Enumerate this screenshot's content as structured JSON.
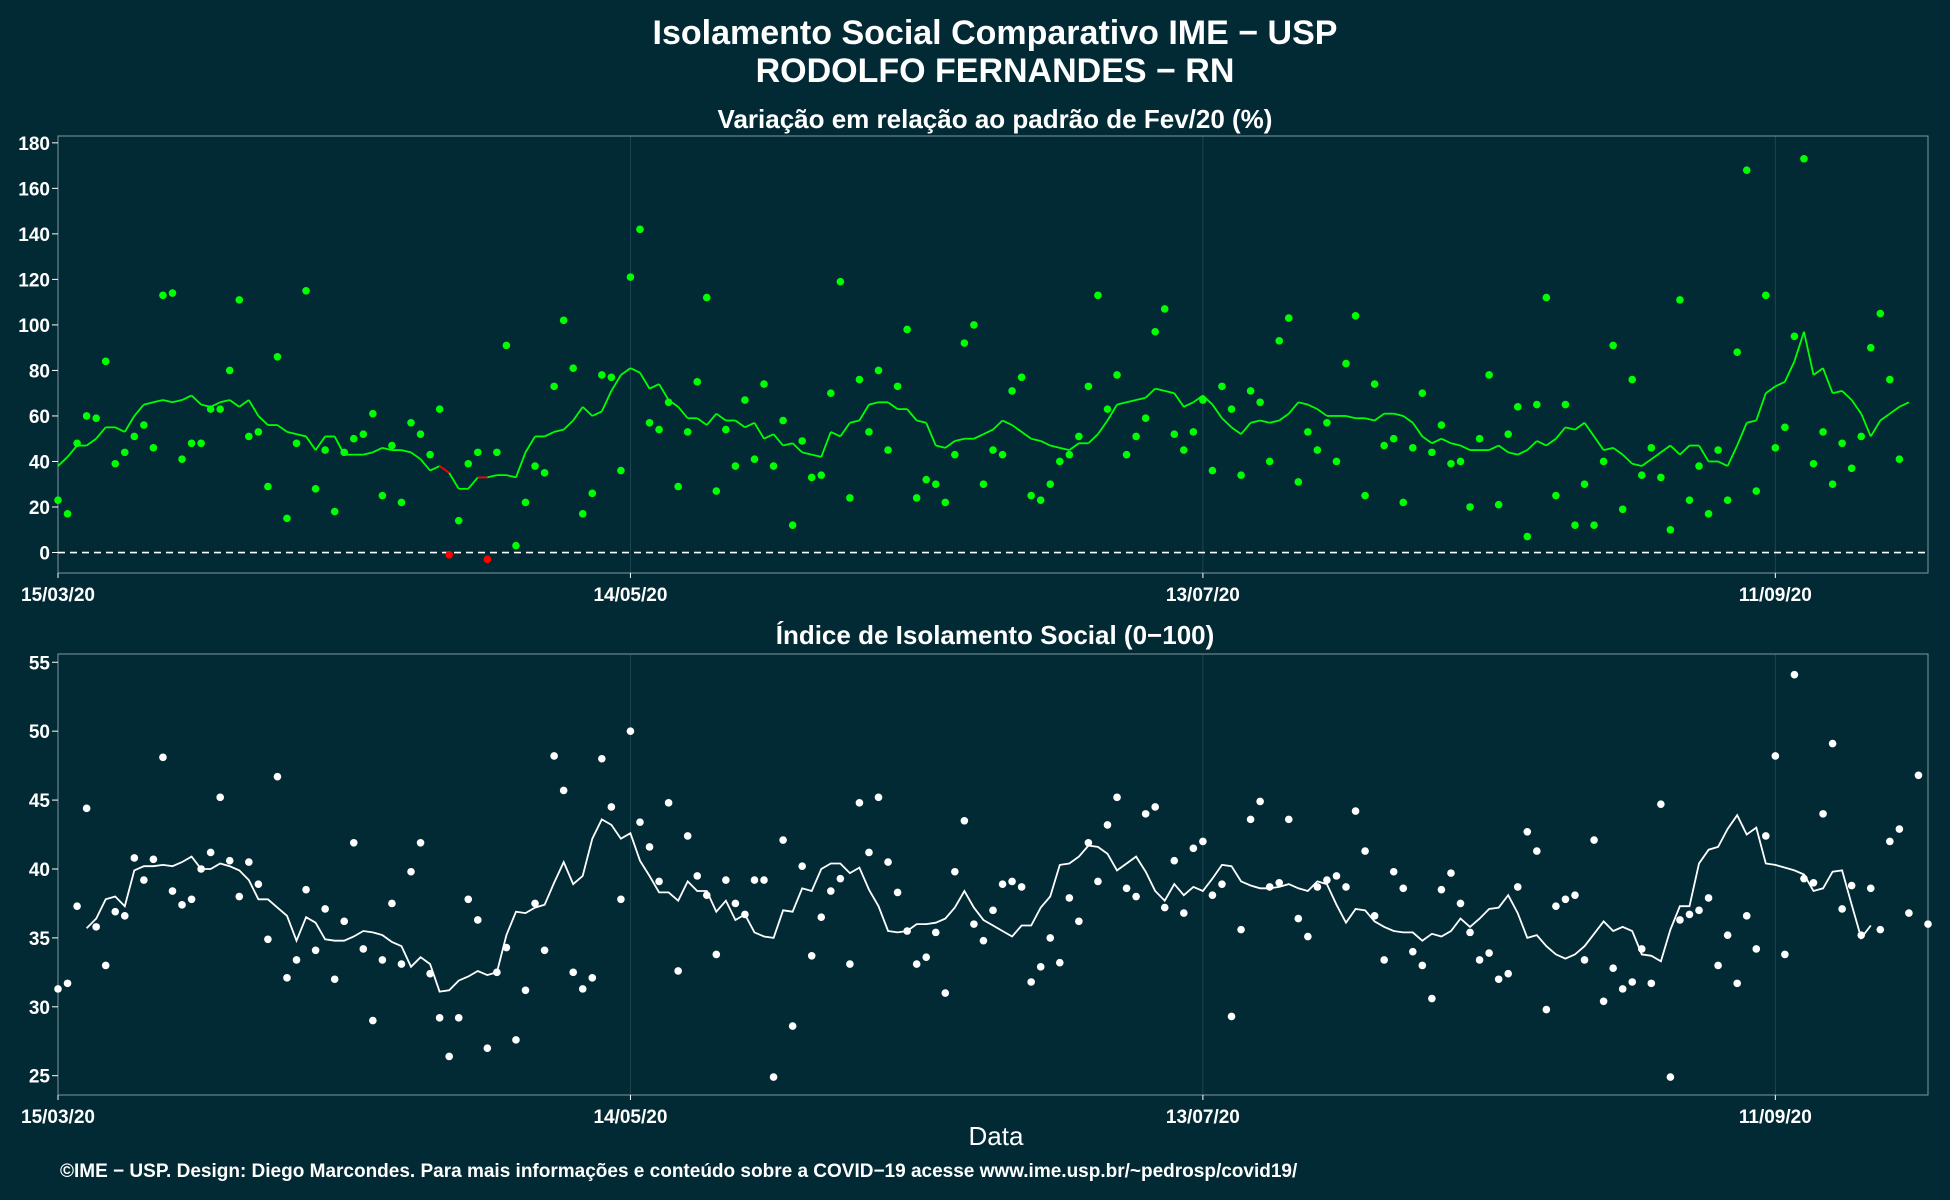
{
  "title_line1": "Isolamento Social Comparativo IME − USP",
  "title_line2": "RODOLFO FERNANDES − RN",
  "xlabel": "Data",
  "caption": "©IME − USP. Design: Diego Marcondes. Para mais informações e conteúdo sobre a COVID−19 acesse www.ime.usp.br/~pedrosp/covid19/",
  "colors": {
    "background": "#022a35",
    "positive": "#00ff00",
    "negative": "#ff0000",
    "index_series": "#ffffff",
    "zero_line": "#ffffff"
  },
  "chart_data": [
    {
      "type": "scatter",
      "title": "Variação em relação ao padrão de Fev/20 (%)",
      "x_ticks": [
        "15/03/20",
        "14/05/20",
        "13/07/20",
        "11/09/20"
      ],
      "x_range_days": [
        0,
        196
      ],
      "y_ticks": [
        0,
        20,
        40,
        60,
        80,
        100,
        120,
        140,
        160,
        180
      ],
      "ylim": [
        -9,
        183
      ],
      "reference_line": 0,
      "grid": true,
      "series": [
        {
          "kind": "daily_points",
          "values": [
            23,
            17,
            48,
            60,
            59,
            84,
            39,
            44,
            51,
            56,
            46,
            113,
            114,
            41,
            48,
            48,
            63,
            63,
            80,
            111,
            51,
            53,
            29,
            86,
            15,
            48,
            115,
            28,
            45,
            18,
            44,
            50,
            52,
            61,
            25,
            47,
            22,
            57,
            52,
            43,
            63,
            -1,
            14,
            39,
            44,
            -3,
            44,
            91,
            3,
            22,
            38,
            35,
            73,
            102,
            81,
            17,
            26,
            78,
            77,
            36,
            121,
            142,
            57,
            54,
            66,
            29,
            53,
            75,
            112,
            27,
            54,
            38,
            67,
            41,
            74,
            38,
            58,
            12,
            49,
            33,
            34,
            70,
            119,
            24,
            76,
            53,
            80,
            45,
            73,
            98,
            24,
            32,
            30,
            22,
            43,
            92,
            100,
            30,
            45,
            43,
            71,
            77,
            25,
            23,
            30,
            40,
            43,
            51,
            73,
            113,
            63,
            78,
            43,
            51,
            59,
            97,
            107,
            52,
            45,
            53,
            67,
            36,
            73,
            63,
            34,
            71,
            66,
            40,
            93,
            103,
            31,
            53,
            45,
            57,
            40,
            83,
            104,
            25,
            74,
            47,
            50,
            22,
            46,
            70,
            44,
            56,
            39,
            40,
            20,
            50,
            78,
            21,
            52,
            64,
            7,
            65,
            112,
            25,
            65,
            12,
            30,
            12,
            40,
            91,
            19,
            76,
            34,
            46,
            33,
            10,
            111,
            23,
            38,
            17,
            45,
            23,
            88,
            168,
            27,
            113,
            46,
            55,
            95,
            173,
            39,
            53,
            30,
            48,
            37,
            51,
            90,
            105,
            76,
            41
          ]
        },
        {
          "kind": "moving_average",
          "values": [
            38,
            42,
            47,
            47,
            50,
            55,
            55,
            53,
            60,
            65,
            66,
            67,
            66,
            67,
            69,
            65,
            64,
            66,
            67,
            64,
            67,
            60,
            56,
            56,
            53,
            52,
            51,
            45,
            51,
            51,
            43,
            43,
            43,
            44,
            46,
            45,
            45,
            44,
            41,
            36,
            38,
            35,
            28,
            28,
            33,
            33,
            34,
            34,
            33,
            44,
            51,
            51,
            53,
            54,
            58,
            64,
            60,
            62,
            71,
            78,
            81,
            79,
            72,
            74,
            67,
            64,
            59,
            59,
            56,
            61,
            58,
            58,
            55,
            57,
            50,
            52,
            47,
            48,
            44,
            43,
            42,
            53,
            51,
            57,
            58,
            65,
            66,
            66,
            63,
            63,
            58,
            57,
            47,
            46,
            49,
            50,
            50,
            52,
            54,
            58,
            56,
            53,
            50,
            49,
            47,
            46,
            45,
            48,
            48,
            52,
            58,
            65,
            66,
            67,
            68,
            72,
            71,
            70,
            64,
            66,
            69,
            65,
            59,
            55,
            52,
            57,
            58,
            57,
            58,
            61,
            66,
            65,
            63,
            60,
            60,
            60,
            59,
            59,
            58,
            61,
            61,
            60,
            57,
            51,
            48,
            50,
            48,
            47,
            45,
            45,
            45,
            47,
            44,
            43,
            45,
            49,
            47,
            50,
            55,
            54,
            57,
            51,
            45,
            46,
            43,
            39,
            38,
            41,
            44,
            47,
            43,
            47,
            47,
            40,
            40,
            38,
            47,
            57,
            58,
            70,
            73,
            75,
            84,
            97,
            78,
            81,
            70,
            71,
            67,
            61,
            51,
            58,
            61,
            64,
            66
          ]
        }
      ]
    },
    {
      "type": "scatter",
      "title": "Índice de Isolamento Social (0−100)",
      "x_ticks": [
        "15/03/20",
        "14/05/20",
        "13/07/20",
        "11/09/20"
      ],
      "x_range_days": [
        0,
        196
      ],
      "y_ticks": [
        25,
        30,
        35,
        40,
        45,
        50,
        55
      ],
      "ylim": [
        23.6,
        55.6
      ],
      "grid": true,
      "series": [
        {
          "kind": "daily_points",
          "values": [
            31.3,
            31.7,
            37.3,
            44.4,
            35.8,
            33,
            36.9,
            36.6,
            40.8,
            39.2,
            40.7,
            48.1,
            38.4,
            37.4,
            37.8,
            40,
            41.2,
            45.2,
            40.6,
            38,
            40.5,
            38.9,
            34.9,
            46.7,
            32.1,
            33.4,
            38.5,
            34.1,
            37.1,
            32,
            36.2,
            41.9,
            34.2,
            29,
            33.4,
            37.5,
            33.1,
            39.8,
            41.9,
            32.4,
            29.2,
            26.4,
            29.2,
            37.8,
            36.3,
            27,
            32.5,
            34.3,
            27.6,
            31.2,
            37.5,
            34.1,
            48.2,
            45.7,
            32.5,
            31.3,
            32.1,
            48,
            44.5,
            37.8,
            50,
            43.4,
            41.6,
            39.1,
            44.8,
            32.6,
            42.4,
            39.5,
            38.1,
            33.8,
            39.2,
            37.5,
            36.7,
            39.2,
            39.2,
            24.9,
            42.1,
            28.6,
            40.2,
            33.7,
            36.5,
            38.4,
            39.3,
            33.1,
            44.8,
            41.2,
            45.2,
            40.5,
            38.3,
            35.5,
            33.1,
            33.6,
            35.4,
            31,
            39.8,
            43.5,
            36,
            34.8,
            37,
            38.9,
            39.1,
            38.7,
            31.8,
            32.9,
            35,
            33.2,
            37.9,
            36.2,
            41.9,
            39.1,
            43.2,
            45.2,
            38.6,
            38,
            44,
            44.5,
            37.2,
            40.6,
            36.8,
            41.5,
            42,
            38.1,
            38.9,
            29.3,
            35.6,
            43.6,
            44.9,
            38.7,
            39,
            43.6,
            36.4,
            35.1,
            38.7,
            39.2,
            39.5,
            38.7,
            44.2,
            41.3,
            36.6,
            33.4,
            39.8,
            38.6,
            34,
            33,
            30.6,
            38.5,
            39.7,
            37.5,
            35.4,
            33.4,
            33.9,
            32,
            32.4,
            38.7,
            42.7,
            41.3,
            29.8,
            37.3,
            37.8,
            38.1,
            33.4,
            42.1,
            30.4,
            32.8,
            31.3,
            31.8,
            34.2,
            31.7,
            44.7,
            24.9,
            36.3,
            36.7,
            37,
            37.9,
            33,
            35.2,
            31.7,
            36.6,
            34.2,
            42.4,
            48.2,
            33.8,
            54.1,
            39.3,
            39,
            44,
            49.1,
            37.1,
            38.8,
            35.2,
            38.6,
            35.6,
            42,
            42.9,
            36.8,
            46.8,
            36
          ]
        },
        {
          "kind": "moving_average",
          "x_start": 3,
          "values": [
            35.7,
            36.4,
            37.8,
            38,
            37.3,
            39.9,
            40.2,
            40.2,
            40.3,
            40.2,
            40.5,
            40.9,
            40,
            40,
            40.4,
            40.2,
            39.9,
            39.2,
            37.8,
            37.8,
            37.2,
            36.6,
            34.8,
            36.5,
            36.1,
            34.9,
            34.8,
            34.8,
            35.1,
            35.5,
            35.4,
            35.2,
            34.7,
            34.4,
            32.9,
            33.6,
            33.1,
            31.1,
            31.2,
            31.9,
            32.2,
            32.6,
            32.3,
            32.5,
            35.2,
            36.9,
            36.8,
            37.2,
            37.4,
            39,
            40.5,
            38.9,
            39.5,
            42.2,
            43.6,
            43.2,
            42.2,
            42.6,
            40.6,
            39.5,
            38.3,
            38.3,
            37.7,
            39.1,
            38.4,
            38.4,
            36.9,
            37.7,
            36.3,
            36.7,
            35.4,
            35.1,
            35,
            37,
            36.9,
            38.6,
            38.4,
            40,
            40.4,
            40.4,
            39.7,
            40.1,
            38.5,
            37.3,
            35.5,
            35.4,
            35.5,
            36,
            36,
            36.1,
            36.4,
            37.2,
            38.4,
            37.2,
            36.3,
            35.9,
            35.5,
            35.1,
            35.9,
            35.9,
            37.2,
            38,
            40.3,
            40.4,
            40.9,
            41.7,
            41.6,
            41.1,
            39.9,
            40.4,
            40.9,
            39.8,
            38.4,
            37.7,
            38.9,
            38.1,
            38.7,
            38.4,
            39.3,
            40.3,
            40.2,
            39.1,
            38.8,
            38.6,
            38.6,
            38.7,
            38.9,
            38.6,
            38.4,
            39.1,
            38.9,
            37.4,
            36.1,
            37.1,
            37,
            36.2,
            35.8,
            35.5,
            35.4,
            35.4,
            34.8,
            35.3,
            35.1,
            35.5,
            36.4,
            35.8,
            36.4,
            37.1,
            37.2,
            38.1,
            36.8,
            35,
            35.2,
            34.4,
            33.8,
            33.5,
            33.8,
            34.4,
            35.3,
            36.2,
            35.5,
            35.8,
            35.5,
            33.8,
            33.7,
            33.3,
            35.6,
            37.3,
            37.3,
            40.4,
            41.4,
            41.6,
            42.9,
            43.9,
            42.5,
            43,
            40.4,
            40.3,
            40.1,
            39.9,
            39.6,
            38.4,
            38.6,
            39.8,
            39.9,
            37.4,
            35,
            35.9
          ]
        }
      ]
    }
  ]
}
